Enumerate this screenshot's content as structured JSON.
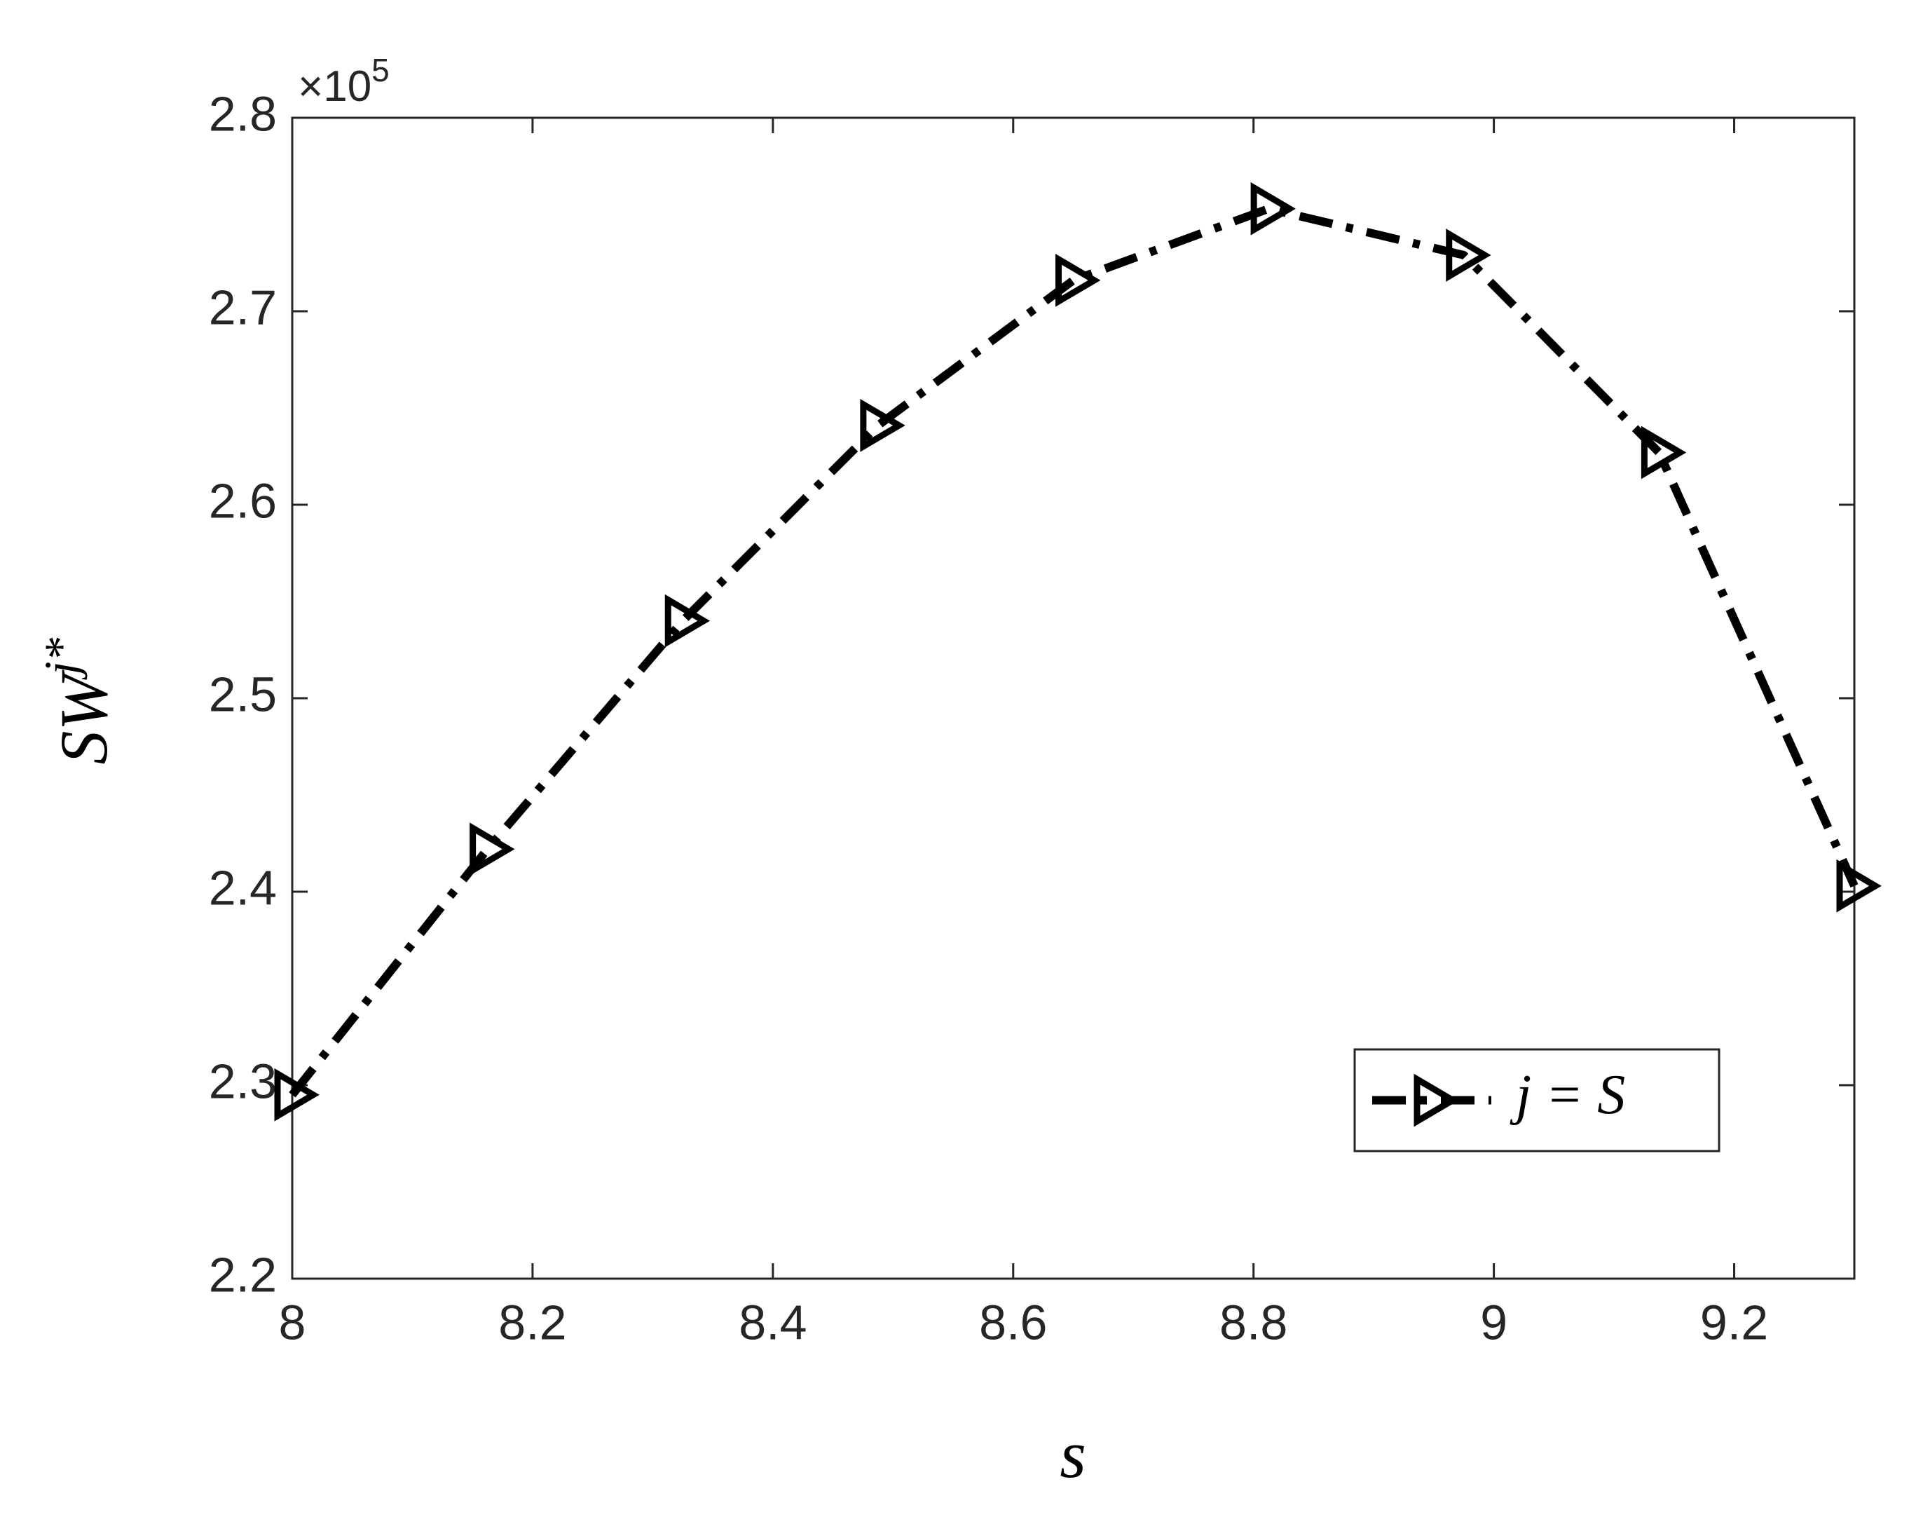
{
  "chart_data": {
    "type": "line",
    "xlabel": "s",
    "ylabel": "SW",
    "ylabel_superscript": "j*",
    "y_multiplier": "×10",
    "y_multiplier_exponent": "5",
    "x": [
      8,
      8.1625,
      8.325,
      8.4875,
      8.65,
      8.8125,
      8.975,
      9.1375,
      9.3
    ],
    "series": [
      {
        "name": "j = S",
        "color": "#000000",
        "values": [
          2.295,
          2.422,
          2.54,
          2.641,
          2.716,
          2.753,
          2.729,
          2.627,
          2.403
        ]
      }
    ],
    "xlim": [
      8,
      9.3
    ],
    "xticks": [
      8,
      8.2,
      8.4,
      8.6,
      8.8,
      9,
      9.2
    ],
    "ylim": [
      2.2,
      2.8
    ],
    "yticks": [
      2.2,
      2.3,
      2.4,
      2.5,
      2.6,
      2.7,
      2.8
    ],
    "legend": "lower right",
    "grid": false
  }
}
